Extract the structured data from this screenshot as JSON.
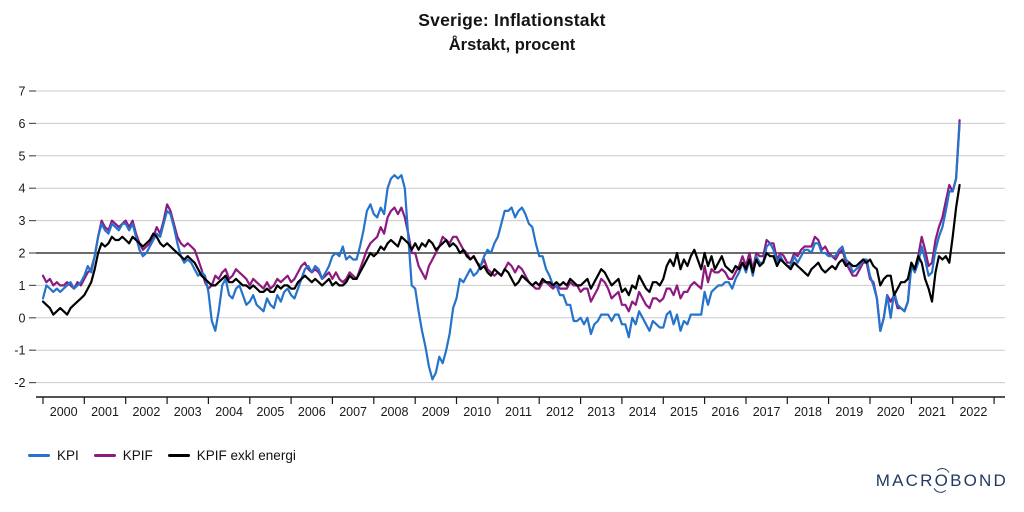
{
  "title": "Sverige: Inflationstakt",
  "subtitle": "Årstakt, procent",
  "legend": [
    {
      "label": "KPI",
      "color": "#2573cb"
    },
    {
      "label": "KPIF",
      "color": "#8c1a7f"
    },
    {
      "label": "KPIF exkl energi",
      "color": "#000000"
    }
  ],
  "logo": {
    "pre": "MACR",
    "o": "O",
    "post": "BOND",
    "color": "#1e3a5e"
  },
  "colors": {
    "gridline": "#cccccc",
    "reference_line": "#3a3a3a",
    "axis": "#1a1a1a",
    "tick_text": "#1a1a1a"
  },
  "chart_data": {
    "type": "line",
    "title": "Sverige: Inflationstakt",
    "subtitle": "Årstakt, procent",
    "frequency": "monthly",
    "x_start_year": 2000,
    "x_end": "2022-03",
    "x_tick_years": [
      "2000",
      "2001",
      "2002",
      "2003",
      "2004",
      "2005",
      "2006",
      "2007",
      "2008",
      "2009",
      "2010",
      "2011",
      "2012",
      "2013",
      "2014",
      "2015",
      "2016",
      "2017",
      "2018",
      "2019",
      "2020",
      "2021",
      "2022"
    ],
    "y_ticks": [
      7,
      6,
      5,
      4,
      3,
      2,
      1,
      0,
      -1,
      -2
    ],
    "ylim": [
      -2.4,
      7.2
    ],
    "reference_line_y": 2,
    "grid": "horizontal",
    "legend_position": "bottom-left",
    "series": [
      {
        "name": "KPI",
        "color": "#2573cb",
        "values": [
          0.6,
          1.0,
          0.9,
          0.8,
          0.9,
          0.8,
          0.9,
          1.0,
          1.1,
          0.9,
          1.0,
          1.1,
          1.3,
          1.6,
          1.4,
          1.9,
          2.5,
          2.9,
          2.7,
          2.6,
          2.9,
          2.8,
          2.7,
          2.9,
          2.9,
          2.7,
          2.9,
          2.5,
          2.1,
          1.9,
          2.0,
          2.2,
          2.4,
          2.6,
          2.5,
          2.9,
          3.3,
          3.2,
          2.8,
          2.3,
          1.9,
          1.7,
          1.8,
          1.7,
          1.5,
          1.3,
          1.4,
          1.3,
          0.8,
          -0.1,
          -0.4,
          0.2,
          1.0,
          1.2,
          0.7,
          0.6,
          0.9,
          1.0,
          0.7,
          0.4,
          0.5,
          0.7,
          0.4,
          0.3,
          0.2,
          0.6,
          0.4,
          0.3,
          0.7,
          0.5,
          0.8,
          0.9,
          0.7,
          0.6,
          0.9,
          1.2,
          1.5,
          1.6,
          1.4,
          1.6,
          1.5,
          1.2,
          1.4,
          1.6,
          1.9,
          2.0,
          1.9,
          2.2,
          1.8,
          1.9,
          1.8,
          1.8,
          2.2,
          2.7,
          3.3,
          3.5,
          3.2,
          3.1,
          3.4,
          3.2,
          4.0,
          4.3,
          4.4,
          4.3,
          4.4,
          4.0,
          2.5,
          1.0,
          0.9,
          0.2,
          -0.4,
          -0.9,
          -1.5,
          -1.9,
          -1.7,
          -1.2,
          -1.4,
          -1.0,
          -0.5,
          0.3,
          0.6,
          1.2,
          1.1,
          1.3,
          1.5,
          1.3,
          1.4,
          1.6,
          1.9,
          2.1,
          2.0,
          2.3,
          2.5,
          2.9,
          3.3,
          3.3,
          3.4,
          3.1,
          3.3,
          3.4,
          3.2,
          2.9,
          2.8,
          2.3,
          1.9,
          1.9,
          1.5,
          1.3,
          1.0,
          1.0,
          0.7,
          0.7,
          0.4,
          0.4,
          -0.1,
          -0.1,
          0.0,
          -0.2,
          0.0,
          -0.5,
          -0.2,
          -0.1,
          0.1,
          0.1,
          0.1,
          -0.1,
          0.1,
          0.1,
          -0.2,
          -0.2,
          -0.6,
          0.0,
          -0.2,
          0.2,
          0.0,
          -0.2,
          -0.4,
          -0.1,
          -0.2,
          -0.3,
          -0.3,
          0.1,
          0.2,
          -0.2,
          0.1,
          -0.4,
          -0.1,
          -0.2,
          0.1,
          0.1,
          0.1,
          0.1,
          0.8,
          0.4,
          0.8,
          0.9,
          1.0,
          1.0,
          1.1,
          1.1,
          0.9,
          1.2,
          1.4,
          1.7,
          1.4,
          1.8,
          1.3,
          1.9,
          1.7,
          1.7,
          2.2,
          2.3,
          2.1,
          1.7,
          1.9,
          1.7,
          1.6,
          1.6,
          1.9,
          1.7,
          1.9,
          2.1,
          2.1,
          2.0,
          2.3,
          2.3,
          2.0,
          2.0,
          1.9,
          1.9,
          1.9,
          2.1,
          2.2,
          1.8,
          1.7,
          1.4,
          1.5,
          1.6,
          1.8,
          1.8,
          1.3,
          1.0,
          0.6,
          -0.4,
          0.0,
          0.7,
          0.0,
          0.8,
          0.4,
          0.3,
          0.2,
          0.5,
          1.6,
          1.4,
          1.7,
          2.2,
          1.8,
          1.3,
          1.4,
          2.1,
          2.5,
          2.8,
          3.3,
          3.9,
          3.9,
          4.3,
          6.0
        ]
      },
      {
        "name": "KPIF",
        "color": "#8c1a7f",
        "values": [
          1.3,
          1.1,
          1.2,
          1.0,
          1.1,
          1.0,
          1.0,
          1.1,
          1.0,
          0.9,
          1.1,
          1.0,
          1.2,
          1.4,
          1.5,
          1.9,
          2.5,
          3.0,
          2.8,
          2.7,
          3.0,
          2.9,
          2.8,
          2.9,
          3.0,
          2.8,
          3.0,
          2.6,
          2.3,
          2.1,
          2.2,
          2.3,
          2.5,
          2.8,
          2.6,
          3.0,
          3.5,
          3.3,
          2.9,
          2.5,
          2.3,
          2.2,
          2.3,
          2.2,
          2.1,
          1.8,
          1.5,
          1.1,
          0.9,
          1.0,
          1.3,
          1.2,
          1.4,
          1.5,
          1.2,
          1.3,
          1.5,
          1.4,
          1.3,
          1.2,
          1.0,
          1.2,
          1.1,
          1.0,
          0.9,
          1.1,
          0.9,
          1.0,
          1.2,
          1.1,
          1.2,
          1.3,
          1.1,
          1.2,
          1.4,
          1.6,
          1.7,
          1.5,
          1.4,
          1.5,
          1.4,
          1.2,
          1.3,
          1.4,
          1.2,
          1.4,
          1.2,
          1.1,
          1.2,
          1.4,
          1.3,
          1.2,
          1.5,
          1.8,
          2.1,
          2.3,
          2.4,
          2.5,
          2.8,
          2.6,
          3.1,
          3.3,
          3.4,
          3.2,
          3.4,
          3.1,
          2.6,
          2.0,
          2.0,
          1.6,
          1.4,
          1.2,
          1.6,
          1.8,
          2.0,
          2.2,
          2.5,
          2.4,
          2.3,
          2.5,
          2.5,
          2.3,
          2.1,
          2.0,
          1.8,
          1.9,
          1.7,
          1.6,
          1.8,
          1.5,
          1.4,
          1.3,
          1.4,
          1.3,
          1.5,
          1.7,
          1.6,
          1.4,
          1.6,
          1.5,
          1.3,
          1.1,
          1.0,
          0.9,
          0.9,
          1.1,
          1.1,
          1.0,
          0.9,
          1.0,
          0.9,
          0.9,
          0.9,
          1.1,
          1.0,
          1.0,
          0.8,
          0.9,
          0.9,
          0.5,
          0.7,
          0.9,
          1.2,
          1.1,
          0.9,
          0.6,
          0.7,
          0.8,
          0.4,
          0.4,
          0.2,
          0.5,
          0.4,
          0.8,
          0.6,
          0.4,
          0.3,
          0.6,
          0.6,
          0.5,
          0.6,
          0.9,
          0.9,
          0.7,
          1.0,
          0.6,
          0.8,
          0.8,
          1.0,
          1.1,
          1.0,
          0.9,
          1.6,
          1.1,
          1.5,
          1.4,
          1.4,
          1.5,
          1.4,
          1.2,
          1.2,
          1.4,
          1.6,
          1.9,
          1.6,
          2.0,
          1.5,
          2.0,
          1.9,
          1.9,
          2.4,
          2.3,
          2.3,
          1.8,
          2.0,
          1.9,
          1.7,
          1.7,
          2.0,
          1.9,
          2.1,
          2.2,
          2.2,
          2.2,
          2.5,
          2.4,
          2.1,
          2.2,
          2.0,
          1.9,
          1.8,
          2.0,
          2.1,
          1.7,
          1.5,
          1.3,
          1.3,
          1.5,
          1.7,
          1.7,
          1.2,
          1.1,
          0.6,
          -0.4,
          0.0,
          0.7,
          0.5,
          0.7,
          0.3,
          0.3,
          0.2,
          0.5,
          1.7,
          1.5,
          1.9,
          2.5,
          2.1,
          1.6,
          1.7,
          2.4,
          2.8,
          3.1,
          3.6,
          4.1,
          3.9,
          4.3,
          6.1
        ]
      },
      {
        "name": "KPIF exkl energi",
        "color": "#000000",
        "values": [
          0.5,
          0.4,
          0.3,
          0.1,
          0.2,
          0.3,
          0.2,
          0.1,
          0.3,
          0.4,
          0.5,
          0.6,
          0.7,
          0.9,
          1.1,
          1.5,
          2.0,
          2.3,
          2.2,
          2.3,
          2.5,
          2.4,
          2.4,
          2.5,
          2.4,
          2.3,
          2.5,
          2.4,
          2.3,
          2.2,
          2.3,
          2.4,
          2.6,
          2.5,
          2.3,
          2.2,
          2.3,
          2.2,
          2.1,
          2.0,
          1.9,
          1.8,
          1.9,
          1.8,
          1.7,
          1.5,
          1.3,
          1.2,
          1.1,
          1.0,
          1.0,
          1.1,
          1.2,
          1.3,
          1.1,
          1.1,
          1.2,
          1.1,
          1.0,
          1.0,
          0.9,
          1.0,
          0.9,
          0.8,
          0.8,
          0.9,
          0.8,
          0.8,
          1.0,
          0.9,
          1.0,
          1.0,
          0.9,
          0.9,
          1.1,
          1.2,
          1.3,
          1.2,
          1.1,
          1.2,
          1.1,
          1.0,
          1.1,
          1.2,
          1.0,
          1.1,
          1.0,
          1.0,
          1.1,
          1.3,
          1.2,
          1.2,
          1.4,
          1.6,
          1.8,
          2.0,
          1.9,
          2.0,
          2.2,
          2.1,
          2.3,
          2.4,
          2.3,
          2.2,
          2.5,
          2.4,
          2.3,
          2.1,
          2.3,
          2.1,
          2.3,
          2.2,
          2.4,
          2.3,
          2.1,
          2.2,
          2.3,
          2.4,
          2.2,
          2.3,
          2.2,
          2.0,
          2.1,
          1.9,
          1.8,
          1.9,
          1.7,
          1.5,
          1.6,
          1.4,
          1.3,
          1.5,
          1.4,
          1.3,
          1.5,
          1.4,
          1.2,
          1.0,
          1.1,
          1.3,
          1.2,
          1.1,
          1.0,
          1.1,
          1.0,
          1.2,
          1.1,
          1.1,
          1.0,
          1.1,
          1.0,
          1.1,
          1.0,
          1.2,
          1.1,
          1.0,
          1.0,
          1.1,
          1.2,
          0.9,
          1.1,
          1.3,
          1.5,
          1.4,
          1.2,
          1.0,
          1.1,
          1.2,
          0.8,
          0.9,
          0.7,
          1.0,
          0.9,
          1.3,
          1.1,
          0.9,
          0.8,
          1.1,
          1.1,
          1.0,
          1.2,
          1.6,
          1.8,
          1.6,
          2.0,
          1.5,
          1.8,
          1.6,
          1.9,
          2.1,
          1.8,
          1.5,
          2.0,
          1.6,
          1.9,
          1.5,
          1.7,
          1.9,
          1.6,
          1.5,
          1.4,
          1.6,
          1.5,
          1.7,
          1.5,
          1.8,
          1.4,
          1.8,
          1.6,
          1.7,
          2.0,
          1.9,
          1.9,
          1.6,
          1.8,
          1.7,
          1.6,
          1.5,
          1.7,
          1.6,
          1.5,
          1.4,
          1.3,
          1.5,
          1.6,
          1.7,
          1.5,
          1.4,
          1.5,
          1.6,
          1.5,
          1.7,
          1.8,
          1.6,
          1.7,
          1.6,
          1.6,
          1.7,
          1.8,
          1.7,
          1.8,
          1.6,
          1.5,
          1.0,
          1.2,
          1.3,
          1.3,
          0.7,
          0.9,
          1.1,
          1.1,
          1.2,
          1.7,
          1.5,
          1.9,
          1.7,
          1.2,
          0.9,
          0.5,
          1.4,
          1.9,
          1.8,
          1.9,
          1.7,
          2.5,
          3.4,
          4.1
        ]
      }
    ]
  }
}
